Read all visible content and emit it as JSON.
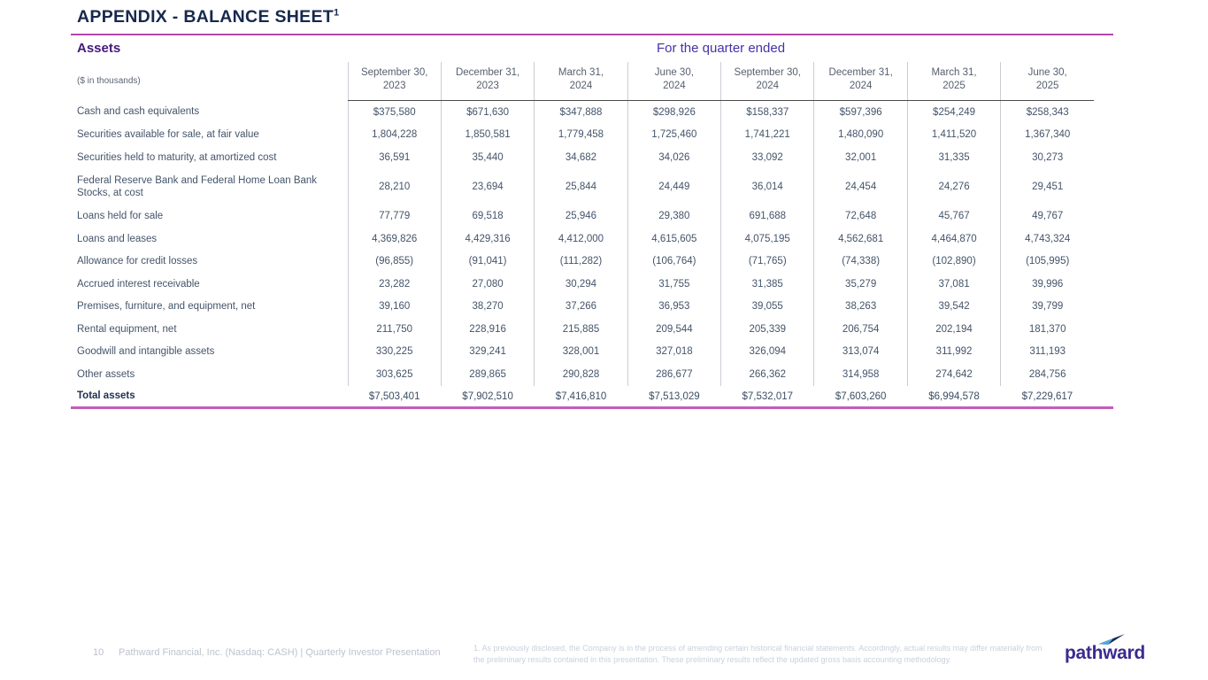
{
  "slide": {
    "title": "APPENDIX - BALANCE SHEET",
    "title_footnote_marker": "1",
    "section_label": "Assets",
    "quarter_caption": "For the quarter ended",
    "units_label": "($ in thousands)"
  },
  "table": {
    "columns": [
      "September 30,\n2023",
      "December 31,\n2023",
      "March 31,\n2024",
      "June 30,\n2024",
      "September 30,\n2024",
      "December 31,\n2024",
      "March 31,\n2025",
      "June 30,\n2025"
    ],
    "rows": [
      {
        "label": "Cash and cash equivalents",
        "values": [
          "$375,580",
          "$671,630",
          "$347,888",
          "$298,926",
          "$158,337",
          "$597,396",
          "$254,249",
          "$258,343"
        ]
      },
      {
        "label": "Securities available for sale, at fair value",
        "values": [
          "1,804,228",
          "1,850,581",
          "1,779,458",
          "1,725,460",
          "1,741,221",
          "1,480,090",
          "1,411,520",
          "1,367,340"
        ]
      },
      {
        "label": "Securities held to maturity, at amortized cost",
        "values": [
          "36,591",
          "35,440",
          "34,682",
          "34,026",
          "33,092",
          "32,001",
          "31,335",
          "30,273"
        ]
      },
      {
        "label": "Federal Reserve Bank and Federal Home Loan Bank Stocks, at cost",
        "values": [
          "28,210",
          "23,694",
          "25,844",
          "24,449",
          "36,014",
          "24,454",
          "24,276",
          "29,451"
        ],
        "tall": true
      },
      {
        "label": "Loans held for sale",
        "values": [
          "77,779",
          "69,518",
          "25,946",
          "29,380",
          "691,688",
          "72,648",
          "45,767",
          "49,767"
        ]
      },
      {
        "label": "Loans and leases",
        "values": [
          "4,369,826",
          "4,429,316",
          "4,412,000",
          "4,615,605",
          "4,075,195",
          "4,562,681",
          "4,464,870",
          "4,743,324"
        ]
      },
      {
        "label": "Allowance for credit losses",
        "values": [
          "(96,855)",
          "(91,041)",
          "(111,282)",
          "(106,764)",
          "(71,765)",
          "(74,338)",
          "(102,890)",
          "(105,995)"
        ]
      },
      {
        "label": "Accrued interest receivable",
        "values": [
          "23,282",
          "27,080",
          "30,294",
          "31,755",
          "31,385",
          "35,279",
          "37,081",
          "39,996"
        ]
      },
      {
        "label": "Premises, furniture, and equipment, net",
        "values": [
          "39,160",
          "38,270",
          "37,266",
          "36,953",
          "39,055",
          "38,263",
          "39,542",
          "39,799"
        ]
      },
      {
        "label": "Rental equipment, net",
        "values": [
          "211,750",
          "228,916",
          "215,885",
          "209,544",
          "205,339",
          "206,754",
          "202,194",
          "181,370"
        ]
      },
      {
        "label": "Goodwill and intangible assets",
        "values": [
          "330,225",
          "329,241",
          "328,001",
          "327,018",
          "326,094",
          "313,074",
          "311,992",
          "311,193"
        ]
      },
      {
        "label": "Other assets",
        "values": [
          "303,625",
          "289,865",
          "290,828",
          "286,677",
          "266,362",
          "314,958",
          "274,642",
          "284,756"
        ]
      }
    ],
    "total_row": {
      "label": "Total assets",
      "values": [
        "$7,503,401",
        "$7,902,510",
        "$7,416,810",
        "$7,513,029",
        "$7,532,017",
        "$7,603,260",
        "$6,994,578",
        "$7,229,617"
      ]
    }
  },
  "footer": {
    "page_number": "10",
    "attribution": "Pathward Financial, Inc. (Nasdaq: CASH) | Quarterly Investor Presentation",
    "footnote": "1. As previously disclosed, the Company is in the process of amending certain historical financial statements. Accordingly, actual results may differ materially from the preliminary results contained in this presentation. These preliminary results reflect the updated gross basis accounting methodology.",
    "logo_text": "pathward"
  },
  "colors": {
    "title_navy": "#16294d",
    "accent_magenta_top": "#b546ab",
    "accent_magenta_bottom": "#c45cb8",
    "section_purple": "#45187c",
    "caption_purple": "#4533a8",
    "data_text": "#44546a",
    "grid_line": "#c9cdd3",
    "dark_rule": "#3d3d3d",
    "footer_gray": "#bcc3cd",
    "logo_purple": "#3a2b8e",
    "logo_arrow_navy": "#16254f",
    "logo_arrow_blue": "#58a8dc"
  }
}
